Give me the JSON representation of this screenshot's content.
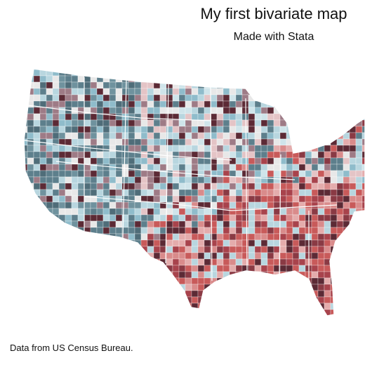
{
  "title": "My first bivariate map",
  "subtitle": "Made with Stata",
  "source": "Data from US Census Bureau."
}
